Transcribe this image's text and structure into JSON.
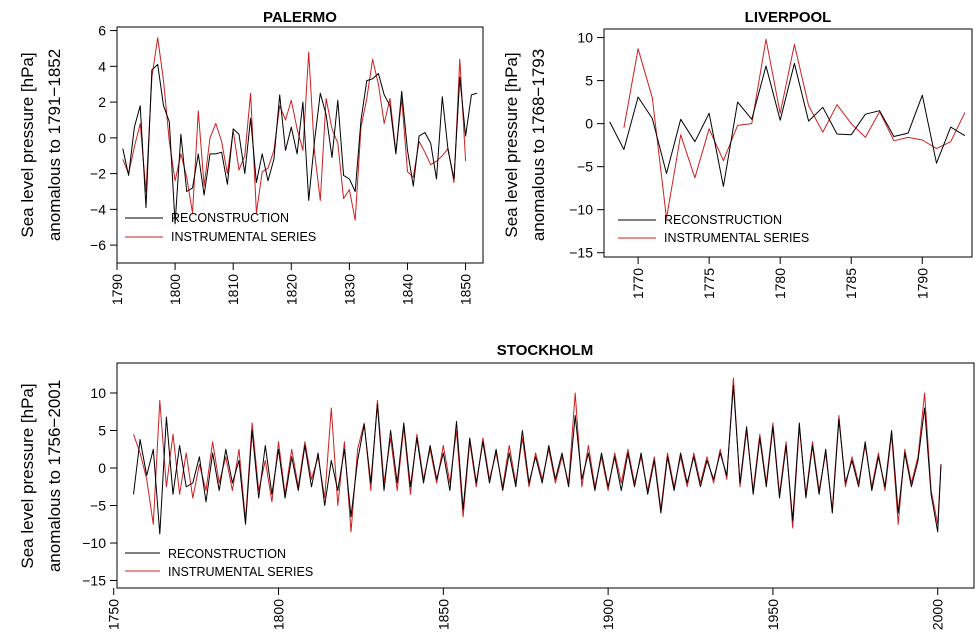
{
  "chart_data": [
    {
      "type": "line",
      "title": "PALERMO",
      "ylabel": [
        "Sea level pressure [hPa]",
        "anomalous to 1791−1852"
      ],
      "xlim": [
        1790,
        1853
      ],
      "ylim": [
        -7,
        6.2
      ],
      "xticks": [
        1790,
        1800,
        1810,
        1820,
        1830,
        1840,
        1850
      ],
      "yticks": [
        -6,
        -4,
        -2,
        0,
        2,
        4,
        6
      ],
      "grid": false,
      "legend": "bottom-left",
      "series": [
        {
          "name": "RECONSTRUCTION",
          "color": "#000000",
          "x": [
            1791,
            1792,
            1793,
            1794,
            1795,
            1796,
            1797,
            1798,
            1799,
            1800,
            1801,
            1802,
            1803,
            1804,
            1805,
            1806,
            1807,
            1808,
            1809,
            1810,
            1811,
            1812,
            1813,
            1814,
            1815,
            1816,
            1817,
            1818,
            1819,
            1820,
            1821,
            1822,
            1823,
            1824,
            1825,
            1826,
            1827,
            1828,
            1829,
            1830,
            1831,
            1832,
            1833,
            1834,
            1835,
            1836,
            1837,
            1838,
            1839,
            1840,
            1841,
            1842,
            1843,
            1844,
            1845,
            1846,
            1847,
            1848,
            1849,
            1850,
            1851,
            1852
          ],
          "y": [
            -0.6,
            -2.1,
            0.6,
            1.8,
            -3.9,
            3.8,
            4.1,
            1.8,
            0.9,
            -4.8,
            0.2,
            -3.0,
            -2.8,
            -0.9,
            -3.2,
            -0.9,
            -0.9,
            -0.8,
            -2.6,
            0.5,
            0.2,
            -2.0,
            1.1,
            -2.5,
            -0.9,
            -2.4,
            -1.2,
            2.4,
            -0.7,
            0.6,
            -0.9,
            2.0,
            -3.5,
            -0.2,
            2.5,
            1.3,
            -1.1,
            2.1,
            -2.1,
            -2.3,
            -3.0,
            1.0,
            3.2,
            3.3,
            3.6,
            2.4,
            1.8,
            -0.9,
            2.6,
            -0.7,
            -2.7,
            0.1,
            0.3,
            -0.3,
            -2.3,
            2.3,
            -0.7,
            -2.3,
            3.4,
            0.1,
            2.4,
            2.5
          ]
        },
        {
          "name": "INSTRUMENTAL SERIES",
          "color": "#cc2020",
          "x": [
            1791,
            1792,
            1793,
            1794,
            1795,
            1796,
            1797,
            1798,
            1799,
            1800,
            1801,
            1802,
            1803,
            1804,
            1805,
            1806,
            1807,
            1808,
            1809,
            1810,
            1811,
            1812,
            1813,
            1814,
            1815,
            1816,
            1817,
            1818,
            1819,
            1820,
            1821,
            1822,
            1823,
            1824,
            1825,
            1826,
            1827,
            1828,
            1829,
            1830,
            1831,
            1832,
            1833,
            1834,
            1835,
            1836,
            1837,
            1838,
            1839,
            1840,
            1841,
            1842,
            1843,
            1844,
            1845,
            1846,
            1847,
            1848,
            1849,
            1850
          ],
          "y": [
            -1.2,
            -2.0,
            -0.5,
            0.8,
            -3.0,
            3.4,
            5.6,
            3.2,
            -0.2,
            -2.4,
            -0.9,
            -2.2,
            -4.2,
            1.5,
            -2.7,
            0.0,
            0.8,
            -0.2,
            -2.0,
            0.4,
            -1.8,
            -1.0,
            2.5,
            -4.2,
            -1.9,
            -1.7,
            -0.7,
            1.8,
            1.0,
            2.1,
            0.5,
            -0.7,
            4.8,
            -0.8,
            -3.5,
            2.2,
            0.5,
            -0.3,
            -3.4,
            -2.9,
            -4.6,
            0.6,
            2.2,
            4.4,
            3.0,
            0.8,
            2.2,
            -0.8,
            2.2,
            -1.9,
            -2.2,
            -0.2,
            -0.8,
            -1.5,
            -1.3,
            -1.0,
            -0.6,
            -2.5,
            4.4,
            -1.3
          ]
        }
      ]
    },
    {
      "type": "line",
      "title": "LIVERPOOL",
      "ylabel": [
        "Sea level pressure [hPa]",
        "anomalous to 1768−1793"
      ],
      "xlim": [
        1767.6,
        1793.5
      ],
      "ylim": [
        -15.5,
        11
      ],
      "xticks": [
        1770,
        1775,
        1780,
        1785,
        1790
      ],
      "yticks": [
        -15,
        -10,
        -5,
        0,
        5,
        10
      ],
      "grid": false,
      "legend": "bottom-left",
      "series": [
        {
          "name": "RECONSTRUCTION",
          "color": "#000000",
          "x": [
            1768,
            1769,
            1770,
            1771,
            1772,
            1773,
            1774,
            1775,
            1776,
            1777,
            1778,
            1779,
            1780,
            1781,
            1782,
            1783,
            1784,
            1785,
            1786,
            1787,
            1788,
            1789,
            1790,
            1791,
            1792,
            1793
          ],
          "y": [
            0.2,
            -3.0,
            3.1,
            0.6,
            -5.8,
            0.5,
            -2.1,
            1.2,
            -7.3,
            2.5,
            0.5,
            6.7,
            0.4,
            7.0,
            0.3,
            1.9,
            -1.2,
            -1.3,
            1.1,
            1.5,
            -1.5,
            -1.1,
            3.3,
            -4.6,
            -0.4,
            -1.4
          ]
        },
        {
          "name": "INSTRUMENTAL SERIES",
          "color": "#cc2020",
          "x": [
            1769,
            1770,
            1771,
            1772,
            1773,
            1774,
            1775,
            1776,
            1777,
            1778,
            1779,
            1780,
            1781,
            1782,
            1783,
            1784,
            1785,
            1786,
            1787,
            1788,
            1789,
            1790,
            1791,
            1792,
            1793
          ],
          "y": [
            -0.5,
            8.7,
            3.0,
            -11.0,
            -1.3,
            -6.3,
            -0.6,
            -4.3,
            -0.2,
            0.0,
            9.8,
            1.2,
            9.2,
            2.1,
            -1.0,
            2.2,
            0.0,
            -1.6,
            1.4,
            -2.0,
            -1.6,
            -1.9,
            -2.9,
            -2.1,
            1.3
          ]
        }
      ]
    },
    {
      "type": "line",
      "title": "STOCKHOLM",
      "ylabel": [
        "Sea level pressure [hPa]",
        "anomalous to 1756−2001"
      ],
      "xlim": [
        1751,
        2011
      ],
      "ylim": [
        -16,
        14
      ],
      "xticks": [
        1750,
        1800,
        1850,
        1900,
        1950,
        2000
      ],
      "yticks": [
        -15,
        -10,
        -5,
        0,
        5,
        10
      ],
      "grid": false,
      "legend": "bottom-left",
      "series": [
        {
          "name": "RECONSTRUCTION",
          "color": "#000000",
          "x": [
            1756,
            1758,
            1760,
            1762,
            1764,
            1766,
            1768,
            1770,
            1772,
            1774,
            1776,
            1778,
            1780,
            1782,
            1784,
            1786,
            1788,
            1790,
            1792,
            1794,
            1796,
            1798,
            1800,
            1802,
            1804,
            1806,
            1808,
            1810,
            1812,
            1814,
            1816,
            1818,
            1820,
            1822,
            1824,
            1826,
            1828,
            1830,
            1832,
            1834,
            1836,
            1838,
            1840,
            1842,
            1844,
            1846,
            1848,
            1850,
            1852,
            1854,
            1856,
            1858,
            1860,
            1862,
            1864,
            1866,
            1868,
            1870,
            1872,
            1874,
            1876,
            1878,
            1880,
            1882,
            1884,
            1886,
            1888,
            1890,
            1892,
            1894,
            1896,
            1898,
            1900,
            1902,
            1904,
            1906,
            1908,
            1910,
            1912,
            1914,
            1916,
            1918,
            1920,
            1922,
            1924,
            1926,
            1928,
            1930,
            1932,
            1934,
            1936,
            1938,
            1940,
            1942,
            1944,
            1946,
            1948,
            1950,
            1952,
            1954,
            1956,
            1958,
            1960,
            1962,
            1964,
            1966,
            1968,
            1970,
            1972,
            1974,
            1976,
            1978,
            1980,
            1982,
            1984,
            1986,
            1988,
            1990,
            1992,
            1994,
            1996,
            1998,
            2000,
            2001
          ],
          "y": [
            -3.5,
            3.8,
            -1.0,
            2.5,
            -8.8,
            6.8,
            -3.5,
            3.0,
            -2.5,
            -2.0,
            1.5,
            -4.5,
            2.0,
            -3.0,
            2.5,
            -2.0,
            1.0,
            -7.5,
            5.0,
            -4.0,
            3.0,
            -3.5,
            2.5,
            -4.0,
            1.5,
            -3.0,
            3.0,
            -2.5,
            2.0,
            -5.0,
            1.0,
            -3.0,
            2.5,
            -6.5,
            1.0,
            5.8,
            -2.0,
            8.5,
            -3.0,
            5.0,
            -2.0,
            6.0,
            -2.5,
            4.0,
            -2.0,
            3.0,
            -1.5,
            2.0,
            -3.0,
            6.2,
            -5.5,
            4.0,
            -2.0,
            3.5,
            -2.0,
            2.5,
            -3.0,
            2.0,
            -2.5,
            5.0,
            -2.0,
            1.5,
            -2.0,
            3.0,
            -1.5,
            2.0,
            -2.5,
            7.0,
            -1.5,
            2.0,
            -3.0,
            2.0,
            -2.5,
            1.5,
            -3.0,
            2.0,
            -2.5,
            2.0,
            -3.5,
            1.0,
            -6.0,
            1.5,
            -3.0,
            2.0,
            -2.0,
            1.5,
            -2.5,
            1.0,
            -1.5,
            2.0,
            -1.0,
            11.0,
            -2.0,
            5.5,
            -3.5,
            4.0,
            -2.5,
            5.5,
            -4.0,
            3.0,
            -7.0,
            6.0,
            -4.0,
            3.0,
            -3.5,
            2.5,
            -6.0,
            6.5,
            -2.0,
            1.0,
            -2.5,
            3.5,
            -3.0,
            1.5,
            -2.5,
            5.0,
            -6.0,
            2.0,
            -2.5,
            1.0,
            8.0,
            -3.5,
            -8.5,
            0.5
          ]
        },
        {
          "name": "INSTRUMENTAL SERIES",
          "color": "#cc2020",
          "x": [
            1756,
            1758,
            1760,
            1762,
            1764,
            1766,
            1768,
            1770,
            1772,
            1774,
            1776,
            1778,
            1780,
            1782,
            1784,
            1786,
            1788,
            1790,
            1792,
            1794,
            1796,
            1798,
            1800,
            1802,
            1804,
            1806,
            1808,
            1810,
            1812,
            1814,
            1816,
            1818,
            1820,
            1822,
            1824,
            1826,
            1828,
            1830,
            1832,
            1834,
            1836,
            1838,
            1840,
            1842,
            1844,
            1846,
            1848,
            1850,
            1852,
            1854,
            1856,
            1858,
            1860,
            1862,
            1864,
            1866,
            1868,
            1870,
            1872,
            1874,
            1876,
            1878,
            1880,
            1882,
            1884,
            1886,
            1888,
            1890,
            1892,
            1894,
            1896,
            1898,
            1900,
            1902,
            1904,
            1906,
            1908,
            1910,
            1912,
            1914,
            1916,
            1918,
            1920,
            1922,
            1924,
            1926,
            1928,
            1930,
            1932,
            1934,
            1936,
            1938,
            1940,
            1942,
            1944,
            1946,
            1948,
            1950,
            1952,
            1954,
            1956,
            1958,
            1960,
            1962,
            1964,
            1966,
            1968,
            1970,
            1972,
            1974,
            1976,
            1978,
            1980,
            1982,
            1984,
            1986,
            1988,
            1990,
            1992,
            1994,
            1996,
            1998,
            2000,
            2001
          ],
          "y": [
            4.5,
            2.0,
            -1.5,
            -7.5,
            9.0,
            -2.5,
            4.5,
            -3.5,
            2.0,
            -4.0,
            0.5,
            -3.0,
            3.5,
            -2.0,
            1.5,
            -3.0,
            2.5,
            -7.0,
            6.0,
            -3.0,
            1.0,
            -4.5,
            3.5,
            -3.5,
            2.5,
            -2.5,
            3.5,
            -1.5,
            1.5,
            -4.0,
            8.0,
            -5.0,
            3.5,
            -8.5,
            2.5,
            6.0,
            -3.0,
            9.0,
            -2.0,
            4.0,
            -3.0,
            5.5,
            -3.5,
            4.5,
            -1.5,
            2.5,
            -2.0,
            3.0,
            -2.0,
            5.0,
            -6.5,
            3.5,
            -2.5,
            4.0,
            -1.5,
            2.0,
            -2.5,
            3.0,
            -2.0,
            4.0,
            -2.5,
            2.0,
            -1.5,
            2.5,
            -2.0,
            1.5,
            -2.0,
            10.0,
            -2.5,
            3.0,
            -2.5,
            1.5,
            -3.0,
            2.0,
            -2.0,
            2.5,
            -2.0,
            1.5,
            -3.0,
            1.5,
            -5.5,
            2.0,
            -2.5,
            1.5,
            -2.5,
            2.0,
            -2.0,
            1.5,
            -2.0,
            2.5,
            -1.5,
            12.0,
            -2.5,
            5.0,
            -3.0,
            4.5,
            -2.0,
            6.0,
            -3.5,
            3.5,
            -8.0,
            5.5,
            -3.5,
            3.5,
            -3.0,
            2.0,
            -5.5,
            7.0,
            -2.5,
            1.5,
            -2.0,
            3.0,
            -2.5,
            2.0,
            -3.0,
            4.5,
            -7.5,
            2.5,
            -2.0,
            1.5,
            10.0,
            -3.0,
            -7.5,
            0.5
          ]
        }
      ]
    }
  ]
}
